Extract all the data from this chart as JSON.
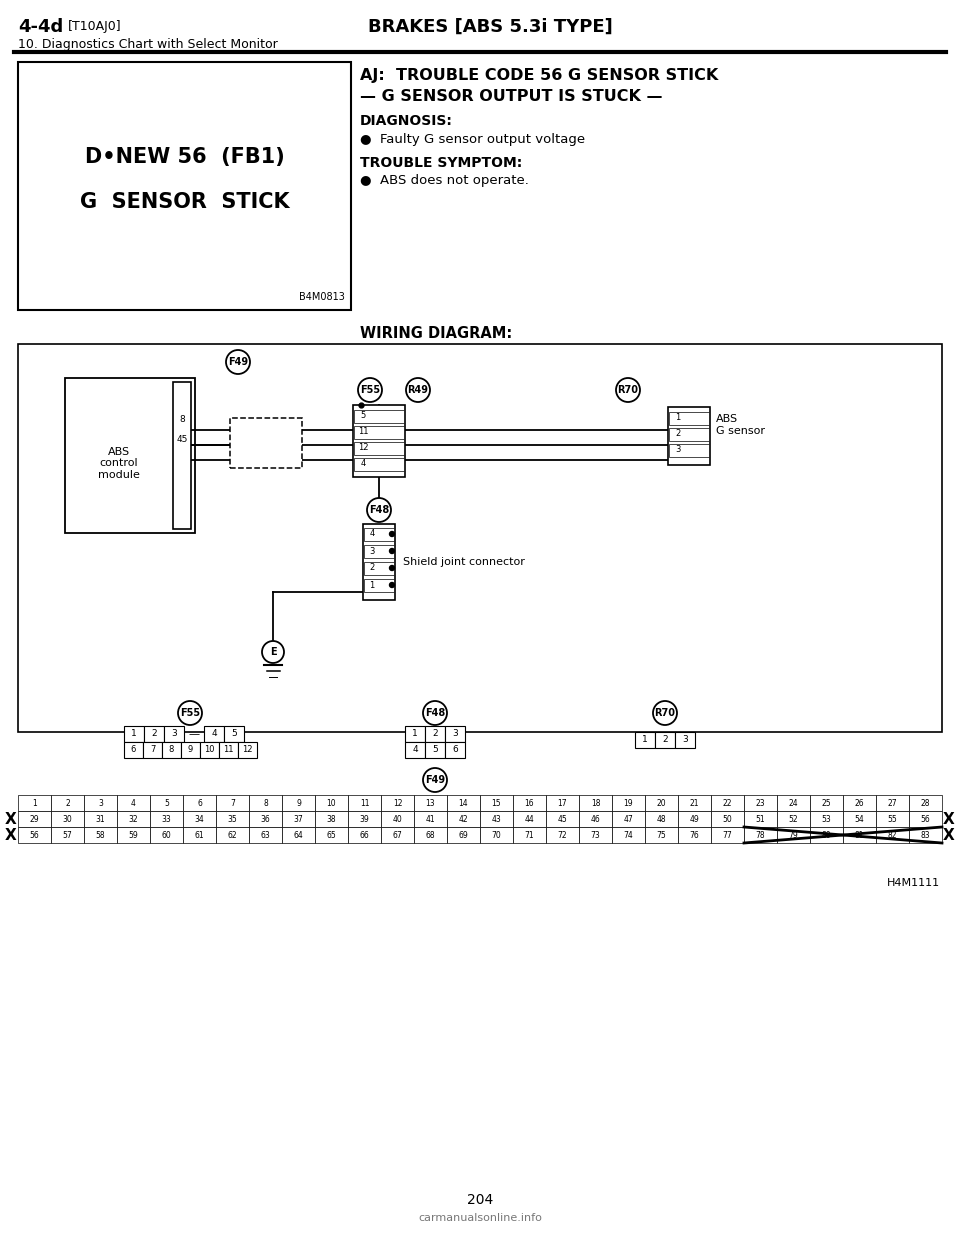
{
  "page_number": "204",
  "header_left_bold": "4-4d",
  "header_left_small": "[T10AJ0]",
  "header_center": "BRAKES [ABS 5.3i TYPE]",
  "header_sub": "10. Diagnostics Chart with Select Monitor",
  "title_line1": "AJ:  TROUBLE CODE 56 G SENSOR STICK",
  "title_line2": "— G SENSOR OUTPUT IS STUCK —",
  "diagnosis_label": "DIAGNOSIS:",
  "diagnosis_bullet": "Faulty G sensor output voltage",
  "trouble_label": "TROUBLE SYMPTOM:",
  "trouble_bullet": "ABS does not operate.",
  "box_line1": "D•NEW 56  (FB1)",
  "box_line2": "G  SENSOR  STICK",
  "box_code": "B4M0813",
  "wiring_label": "WIRING DIAGRAM:",
  "abs_control": "ABS\ncontrol\nmodule",
  "abs_sensor": "ABS\nG sensor",
  "shield_label": "Shield joint connector",
  "footer_ref": "H4M1111",
  "bg_color": "#ffffff",
  "text_color": "#000000",
  "page_url": "carmanualsonline.info"
}
